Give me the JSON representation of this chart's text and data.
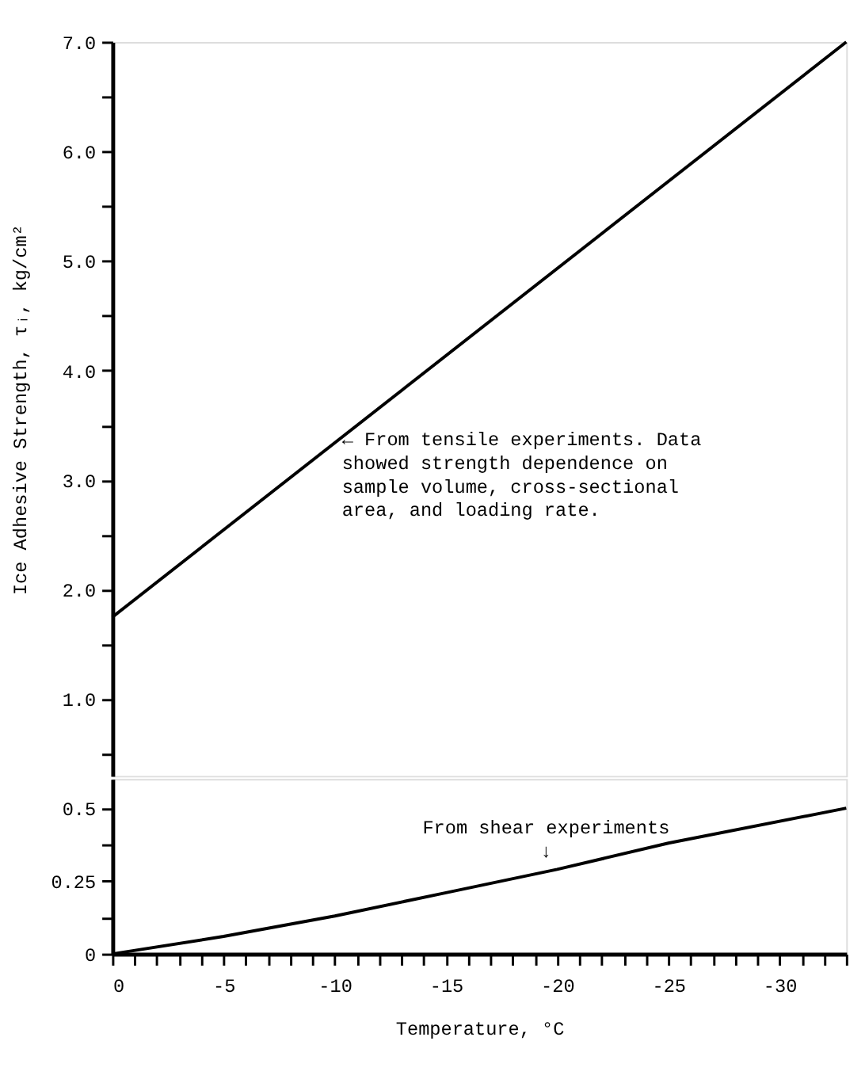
{
  "chart_data": [
    {
      "type": "line",
      "ylabel": "Ice Adhesive Strength, τᵢ, kg/cm²",
      "xlim": [
        0,
        -33
      ],
      "ylim": [
        0.3,
        7.0
      ],
      "tick_labels": "y",
      "marker": "none",
      "line_style": "solid",
      "yticks": [
        {
          "value": 0.5,
          "label": null
        },
        {
          "value": 1,
          "label": "1.0"
        },
        {
          "value": 1.5,
          "label": null
        },
        {
          "value": 2,
          "label": "2.0"
        },
        {
          "value": 2.5,
          "label": null
        },
        {
          "value": 3,
          "label": "3.0"
        },
        {
          "value": 3.5,
          "label": null
        },
        {
          "value": 4,
          "label": "4.0"
        },
        {
          "value": 4.5,
          "label": null
        },
        {
          "value": 5,
          "label": "5.0"
        },
        {
          "value": 5.5,
          "label": null
        },
        {
          "value": 6,
          "label": "6.0"
        },
        {
          "value": 6.5,
          "label": null
        },
        {
          "value": 7,
          "label": "7.0"
        }
      ],
      "x": [
        0,
        -33
      ],
      "series": [
        {
          "color": "#000000",
          "values": [
            1.75,
            7.0
          ]
        }
      ],
      "annotations": [
        {
          "text": "← From tensile experiments.  Data\n   showed strength dependence on\n   sample volume, cross-sectional\n   area, and loading rate.",
          "x": -9.9,
          "y": 3.33
        }
      ]
    },
    {
      "type": "line",
      "xlabel": "Temperature, °C",
      "xlim": [
        0,
        -33
      ],
      "ylim": [
        0,
        0.6
      ],
      "marker": "none",
      "line_style": "solid",
      "yticks": [
        0,
        {
          "value": 0.125,
          "label": null
        },
        0.25,
        {
          "value": 0.375,
          "label": null
        },
        0.5
      ],
      "xticks": [
        0,
        {
          "value": -1,
          "label": null
        },
        {
          "value": -2,
          "label": null
        },
        {
          "value": -3,
          "label": null
        },
        {
          "value": -4,
          "label": null
        },
        -5,
        {
          "value": -6,
          "label": null
        },
        {
          "value": -7,
          "label": null
        },
        {
          "value": -8,
          "label": null
        },
        {
          "value": -9,
          "label": null
        },
        -10,
        {
          "value": -11,
          "label": null
        },
        {
          "value": -12,
          "label": null
        },
        {
          "value": -13,
          "label": null
        },
        {
          "value": -14,
          "label": null
        },
        -15,
        {
          "value": -16,
          "label": null
        },
        {
          "value": -17,
          "label": null
        },
        {
          "value": -18,
          "label": null
        },
        {
          "value": -19,
          "label": null
        },
        -20,
        {
          "value": -21,
          "label": null
        },
        {
          "value": -22,
          "label": null
        },
        {
          "value": -23,
          "label": null
        },
        {
          "value": -24,
          "label": null
        },
        -25,
        {
          "value": -26,
          "label": null
        },
        {
          "value": -27,
          "label": null
        },
        {
          "value": -28,
          "label": null
        },
        {
          "value": -29,
          "label": null
        },
        -30,
        {
          "value": -31,
          "label": null
        },
        {
          "value": -32,
          "label": null
        },
        {
          "value": -33,
          "label": null
        }
      ],
      "x": [
        0,
        -5,
        -10,
        -15,
        -20,
        -25,
        -33
      ],
      "series": [
        {
          "color": "#000000",
          "values": [
            0,
            0.06,
            0.13,
            0.21,
            0.29,
            0.38,
            0.5
          ]
        }
      ],
      "annotations": [
        {
          "text": "From shear experiments\n↓",
          "x": -19.5,
          "y": 0.29
        }
      ]
    }
  ]
}
